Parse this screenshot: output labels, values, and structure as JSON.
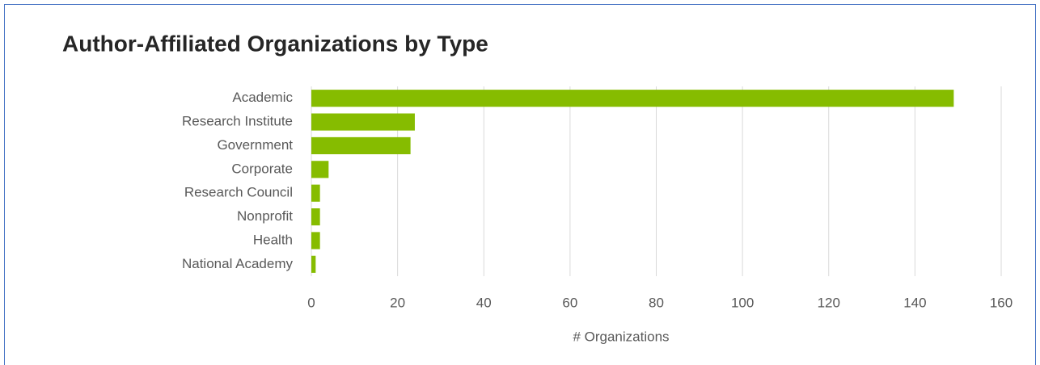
{
  "chart_data": {
    "type": "bar",
    "orientation": "horizontal",
    "title": "Author-Affiliated Organizations by Type",
    "x_label": "# Organizations",
    "categories": [
      "Academic",
      "Research Institute",
      "Government",
      "Corporate",
      "Research Council",
      "Nonprofit",
      "Health",
      "National Academy"
    ],
    "values": [
      149,
      24,
      23,
      4,
      2,
      2,
      2,
      1
    ],
    "color": "#86bc00",
    "xlim": [
      0,
      160
    ],
    "xticks": [
      0,
      20,
      40,
      60,
      80,
      100,
      120,
      140,
      160
    ],
    "grid": true
  }
}
